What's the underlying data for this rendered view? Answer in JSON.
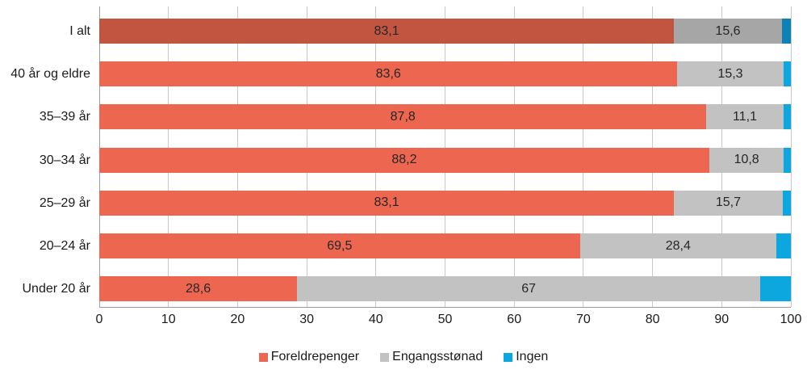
{
  "chart_data": {
    "type": "bar",
    "orientation": "horizontal",
    "stacked": true,
    "categories": [
      "I alt",
      "40 år og eldre",
      "35–39 år",
      "30–34 år",
      "25–29 år",
      "20–24 år",
      "Under 20 år"
    ],
    "series": [
      {
        "name": "Foreldrepenger",
        "color": "#ec6650",
        "total_row_color": "#c2553f",
        "values": [
          83.1,
          83.6,
          87.8,
          88.2,
          83.1,
          69.5,
          28.6
        ],
        "labels": [
          "83,1",
          "83,6",
          "87,8",
          "88,2",
          "83,1",
          "69,5",
          "28,6"
        ]
      },
      {
        "name": "Engangsstønad",
        "color": "#c2c2c2",
        "total_row_color": "#a6a6a6",
        "values": [
          15.6,
          15.3,
          11.1,
          10.8,
          15.7,
          28.4,
          67
        ],
        "labels": [
          "15,6",
          "15,3",
          "11,1",
          "10,8",
          "15,7",
          "28,4",
          "67"
        ]
      },
      {
        "name": "Ingen",
        "color": "#0da7e0",
        "total_row_color": "#0d81b5",
        "values": [
          1.3,
          1.1,
          1.1,
          1.0,
          1.2,
          2.1,
          4.4
        ],
        "labels": [
          "",
          "",
          "",
          "",
          "",
          "",
          ""
        ]
      }
    ],
    "xlim": [
      0,
      100
    ],
    "x_ticks": [
      "0",
      "10",
      "20",
      "30",
      "40",
      "50",
      "60",
      "70",
      "80",
      "90",
      "100"
    ],
    "grid": "vertical",
    "legend_position": "bottom-center",
    "highlight": "first row (I alt) drawn in darker shades"
  },
  "colors": {
    "gridline": "#c9c9c9",
    "axis_line": "#999999",
    "text": "#1a1a1a"
  }
}
